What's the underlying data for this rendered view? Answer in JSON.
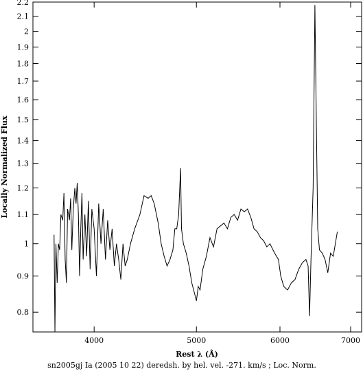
{
  "chart_data": {
    "type": "line",
    "title": "sn2005gj Ia (2005 10 22) deredsh. by hel. vel.  -271. km/s ;  Loc. Norm.",
    "x_label": "Rest λ (Å)",
    "y_label": "Locally Normalized Flux",
    "xlog": true,
    "ylog": true,
    "color": "#000000",
    "xlim": [
      3500,
      7170
    ],
    "ylim": [
      0.75,
      2.2
    ],
    "xticks": [
      4000,
      5000,
      6000,
      7000
    ],
    "yticks": [
      0.8,
      0.9,
      1,
      1.1,
      1.2,
      1.3,
      1.4,
      1.5,
      1.6,
      1.7,
      1.8,
      1.9,
      2,
      2.1,
      2.2
    ],
    "x": [
      3665,
      3672,
      3680,
      3690,
      3700,
      3710,
      3720,
      3735,
      3745,
      3755,
      3765,
      3775,
      3790,
      3800,
      3810,
      3822,
      3835,
      3845,
      3855,
      3865,
      3875,
      3885,
      3895,
      3905,
      3920,
      3935,
      3950,
      3965,
      3980,
      4000,
      4020,
      4040,
      4060,
      4080,
      4100,
      4120,
      4140,
      4160,
      4180,
      4200,
      4220,
      4240,
      4260,
      4280,
      4300,
      4330,
      4370,
      4420,
      4460,
      4500,
      4530,
      4560,
      4600,
      4630,
      4660,
      4690,
      4720,
      4750,
      4770,
      4790,
      4810,
      4830,
      4840,
      4860,
      4890,
      4920,
      4950,
      4980,
      5000,
      5020,
      5040,
      5070,
      5110,
      5150,
      5190,
      5230,
      5270,
      5310,
      5350,
      5390,
      5430,
      5470,
      5510,
      5550,
      5590,
      5630,
      5670,
      5710,
      5750,
      5790,
      5830,
      5870,
      5930,
      5980,
      6010,
      6050,
      6100,
      6150,
      6200,
      6250,
      6300,
      6350,
      6380,
      6400,
      6420,
      6450,
      6475,
      6495,
      6515,
      6540,
      6580,
      6620,
      6660,
      6700,
      6740,
      6770,
      6800
    ],
    "values": [
      1.03,
      0.75,
      1.0,
      0.88,
      1.0,
      0.98,
      1.1,
      1.08,
      1.18,
      0.95,
      0.88,
      1.12,
      1.08,
      1.16,
      0.98,
      1.12,
      1.2,
      1.14,
      1.22,
      1.1,
      0.9,
      1.05,
      1.18,
      0.95,
      1.1,
      0.96,
      1.15,
      0.92,
      1.12,
      1.05,
      0.9,
      1.14,
      1.0,
      1.12,
      0.95,
      1.08,
      0.98,
      1.05,
      0.93,
      1.0,
      0.95,
      0.89,
      1.0,
      0.93,
      0.95,
      1.0,
      1.05,
      1.1,
      1.17,
      1.16,
      1.17,
      1.14,
      1.07,
      1.0,
      0.96,
      0.93,
      0.95,
      0.98,
      1.05,
      1.05,
      1.1,
      1.28,
      1.05,
      1.0,
      0.97,
      0.93,
      0.88,
      0.85,
      0.83,
      0.87,
      0.86,
      0.92,
      0.96,
      1.02,
      0.99,
      1.05,
      1.06,
      1.07,
      1.05,
      1.09,
      1.1,
      1.08,
      1.12,
      1.11,
      1.12,
      1.09,
      1.05,
      1.04,
      1.02,
      1.01,
      0.99,
      1.0,
      0.97,
      0.95,
      0.9,
      0.87,
      0.86,
      0.88,
      0.89,
      0.92,
      0.94,
      0.95,
      0.93,
      0.79,
      0.95,
      1.2,
      2.18,
      1.5,
      1.05,
      0.98,
      0.97,
      0.95,
      0.91,
      0.97,
      0.96,
      1.0,
      1.04
    ]
  }
}
